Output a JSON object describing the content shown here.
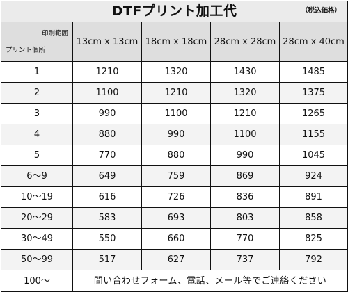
{
  "title": "DTFプリント加工代",
  "tax_note": "（税込価格）",
  "corner": {
    "top": "印刷範囲",
    "bottom": "プリント個所"
  },
  "sizes": [
    "13cm x 13cm",
    "18cm x 18cm",
    "28cm x 28cm",
    "28cm x 40cm"
  ],
  "rows": [
    {
      "qty": "1",
      "prices": [
        "1210",
        "1320",
        "1430",
        "1485"
      ]
    },
    {
      "qty": "2",
      "prices": [
        "1100",
        "1210",
        "1320",
        "1375"
      ]
    },
    {
      "qty": "3",
      "prices": [
        "990",
        "1100",
        "1210",
        "1265"
      ]
    },
    {
      "qty": "4",
      "prices": [
        "880",
        "990",
        "1100",
        "1155"
      ]
    },
    {
      "qty": "5",
      "prices": [
        "770",
        "880",
        "990",
        "1045"
      ]
    },
    {
      "qty": "6〜9",
      "prices": [
        "649",
        "759",
        "869",
        "924"
      ]
    },
    {
      "qty": "10〜19",
      "prices": [
        "616",
        "726",
        "836",
        "891"
      ]
    },
    {
      "qty": "20〜29",
      "prices": [
        "583",
        "693",
        "803",
        "858"
      ]
    },
    {
      "qty": "30〜49",
      "prices": [
        "550",
        "660",
        "770",
        "825"
      ]
    },
    {
      "qty": "50〜99",
      "prices": [
        "517",
        "627",
        "737",
        "792"
      ]
    }
  ],
  "last_row": {
    "qty": "100〜",
    "note": "問い合わせフォーム、電話、メール等でご連絡ください"
  }
}
